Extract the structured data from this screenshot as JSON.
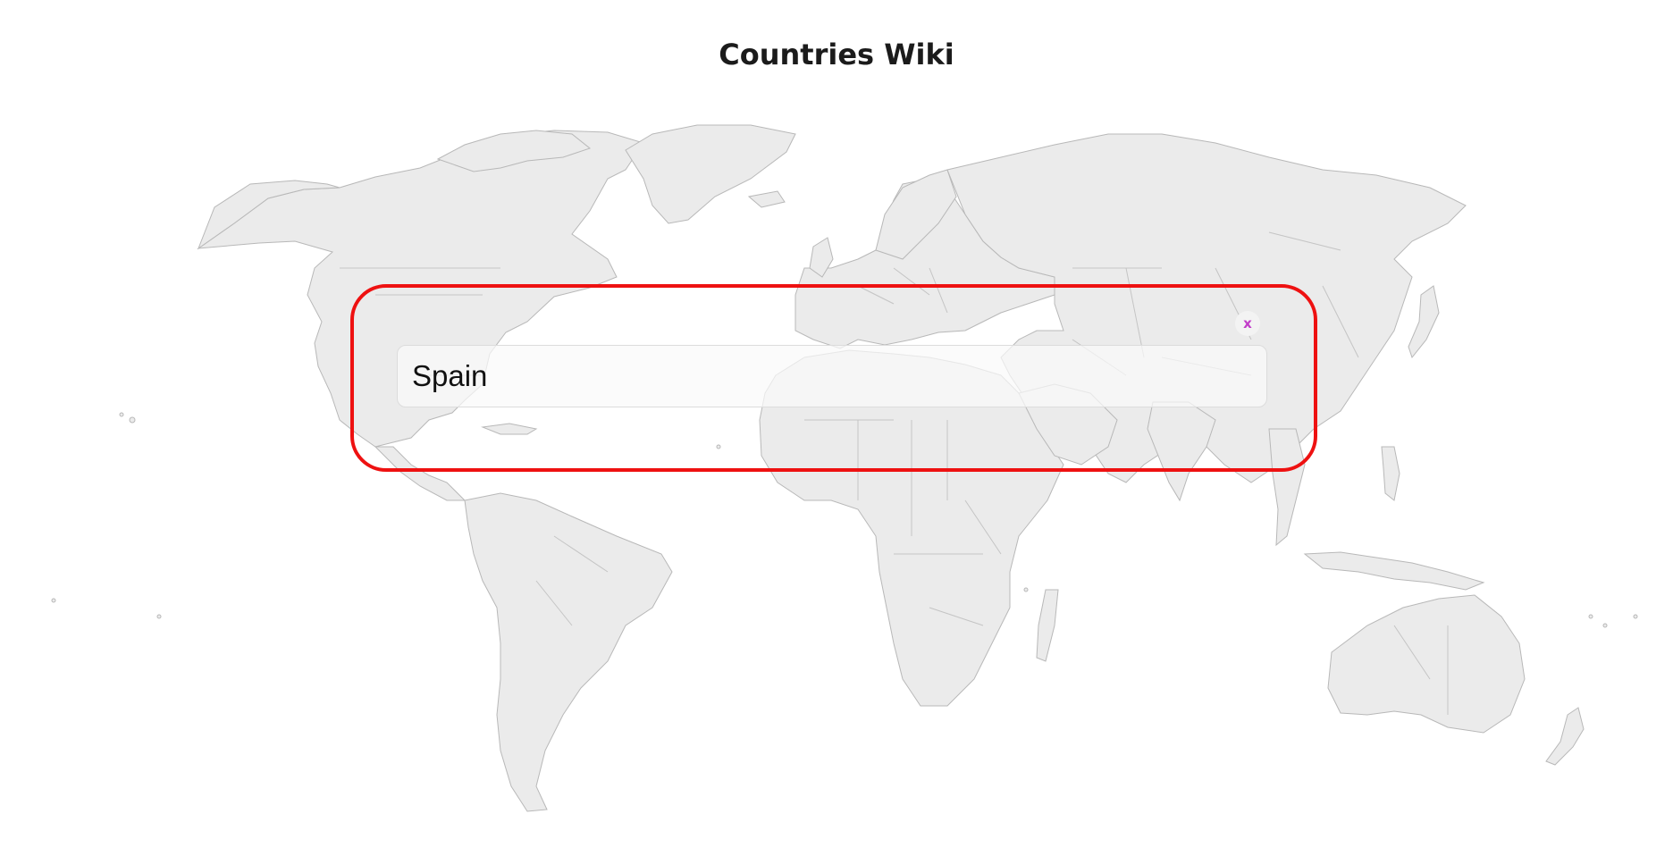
{
  "header": {
    "title": "Countries Wiki"
  },
  "search_modal": {
    "input_value": "Spain",
    "close_label": "x"
  },
  "colors": {
    "modal_border": "#ee1111",
    "close_icon": "#c23cc9",
    "land_fill": "#ebebeb",
    "land_stroke": "#b8b8b8"
  }
}
